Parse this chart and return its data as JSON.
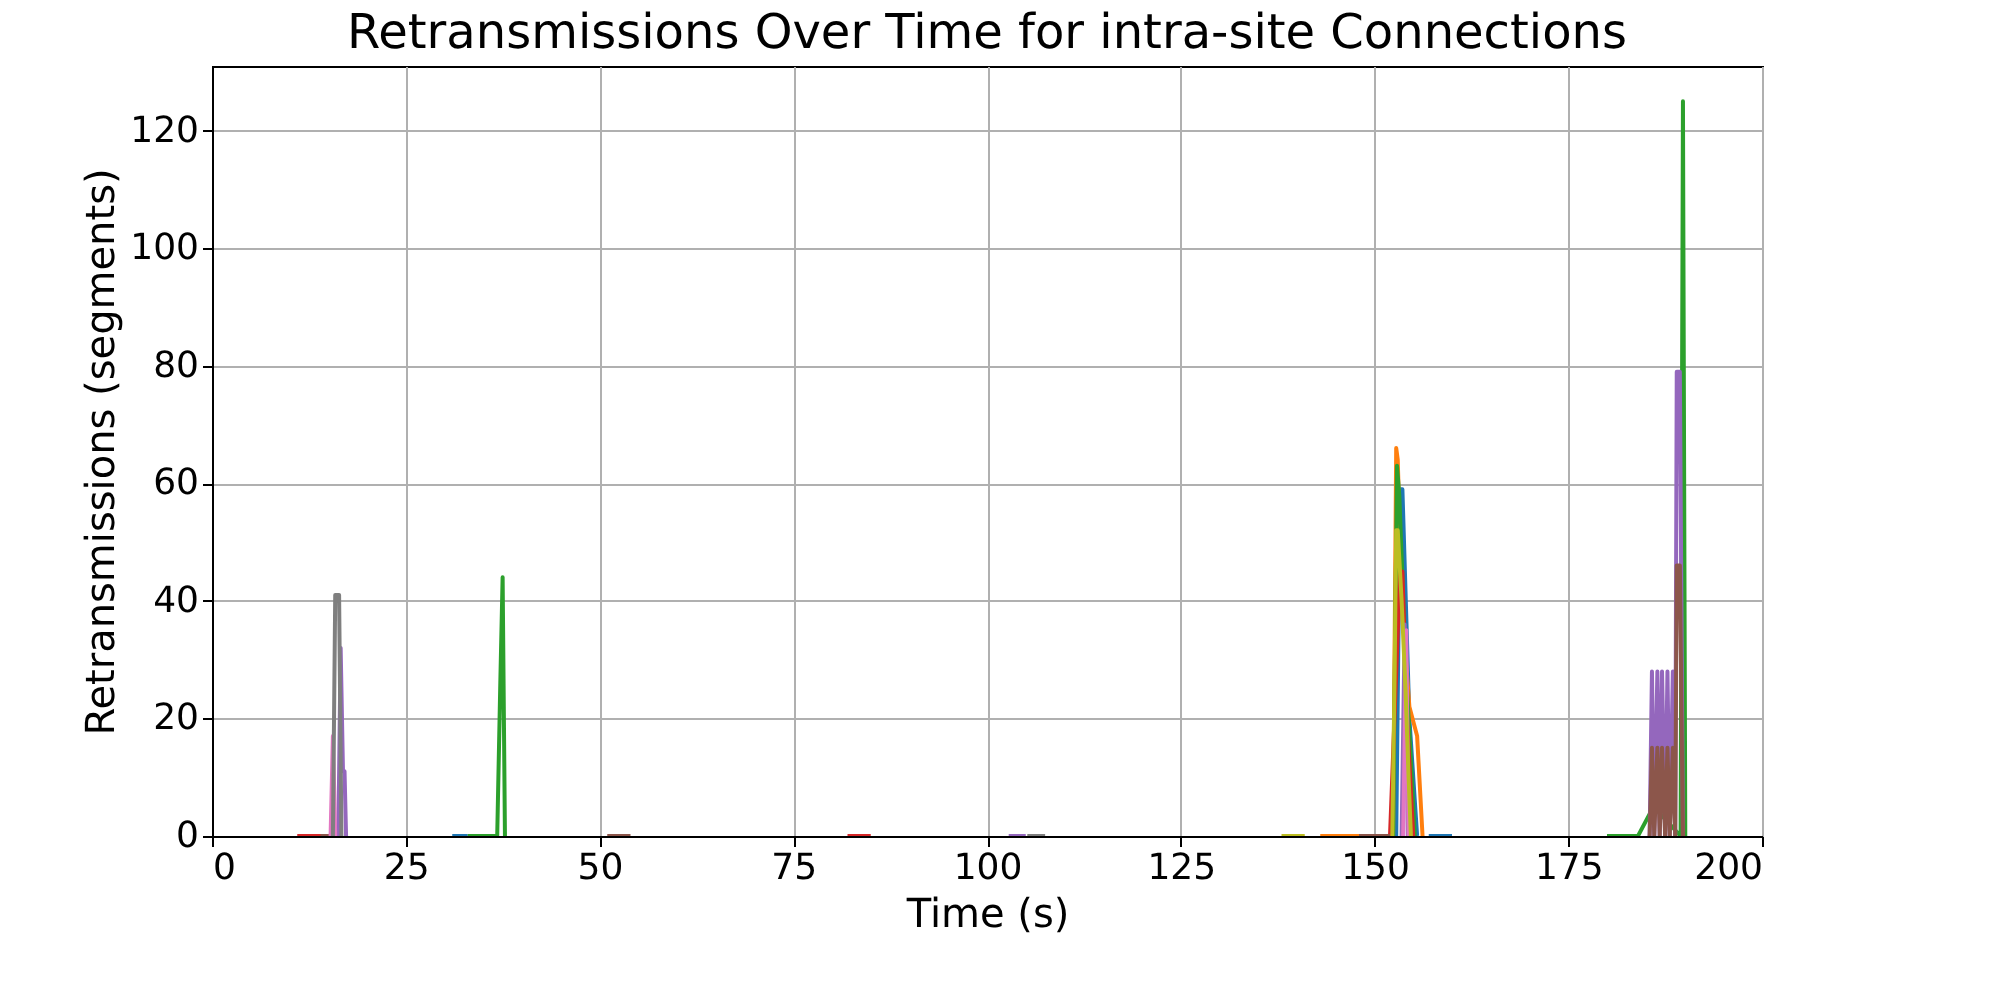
{
  "chart_data": {
    "type": "line",
    "title": "Retransmissions Over Time for intra-site Connections",
    "xlabel": "Time (s)",
    "ylabel": "Retransmissions (segments)",
    "xlim": [
      0,
      200
    ],
    "xticks": [
      0,
      25,
      50,
      75,
      100,
      125,
      150,
      175,
      200
    ],
    "ylim": [
      0,
      131
    ],
    "yticks": [
      0,
      20,
      40,
      60,
      80,
      100,
      120
    ],
    "grid": true,
    "legend": false,
    "marker": "none",
    "line_style": "solid",
    "series": [
      {
        "color": "#1f77b4",
        "x": [
          31,
          33,
          null,
          152.8,
          153.3,
          153.6,
          154.5,
          155.5,
          null,
          157,
          160
        ],
        "values": [
          0,
          0,
          null,
          0,
          59,
          59,
          20,
          0,
          null,
          0,
          0
        ]
      },
      {
        "color": "#ff7f0e",
        "x": [
          143,
          150,
          null,
          152.4,
          152.8,
          153.0,
          153.5,
          154.5,
          155.5,
          156.2
        ],
        "values": [
          0,
          0,
          null,
          0,
          66,
          64,
          40,
          22,
          17,
          0
        ]
      },
      {
        "color": "#2ca02c",
        "x": [
          33,
          36.8,
          37.2,
          37.5,
          37.8,
          null,
          152.4,
          152.9,
          153.2,
          154,
          155.2,
          null,
          180,
          184,
          186,
          189.5,
          189.8,
          190.1
        ],
        "values": [
          0,
          0,
          26,
          44,
          0,
          null,
          0,
          63,
          58,
          30,
          0,
          null,
          0,
          0,
          5,
          0,
          125,
          0
        ]
      },
      {
        "color": "#d62728",
        "x": [
          11,
          15,
          null,
          82,
          85,
          null,
          152,
          153.3,
          153.6,
          154.2,
          155
        ],
        "values": [
          0,
          0,
          null,
          0,
          0,
          null,
          0,
          45,
          45,
          20,
          0
        ]
      },
      {
        "color": "#9467bd",
        "x": [
          16.3,
          16.6,
          16.9,
          17.1,
          17.3,
          null,
          102.8,
          105,
          null,
          153.5,
          153.9,
          154.3,
          null,
          185.5,
          185.8,
          186.1,
          186.5,
          186.8,
          187.1,
          187.5,
          187.8,
          188.1,
          188.5,
          188.8,
          189.0,
          189.4,
          189.8
        ],
        "values": [
          0,
          32,
          11,
          11,
          0,
          null,
          0,
          0,
          null,
          0,
          36,
          0,
          null,
          0,
          28,
          0,
          28,
          0,
          28,
          0,
          28,
          0,
          28,
          0,
          79,
          79,
          0
        ]
      },
      {
        "color": "#8c564b",
        "x": [
          14,
          15.5,
          null,
          51,
          54,
          null,
          148,
          152,
          null,
          185.5,
          185.8,
          186.1,
          186.5,
          186.8,
          187.1,
          187.5,
          187.8,
          188.1,
          188.5,
          188.8,
          189.0,
          189.4,
          189.8
        ],
        "values": [
          0,
          0,
          null,
          0,
          0,
          null,
          0,
          0,
          null,
          0,
          15,
          0,
          15,
          0,
          15,
          0,
          15,
          0,
          15,
          0,
          46,
          46,
          0
        ]
      },
      {
        "color": "#e377c2",
        "x": [
          15.3,
          15.6,
          15.9,
          null,
          153.7,
          154.1,
          154.4
        ],
        "values": [
          0,
          17,
          0,
          null,
          0,
          35,
          0
        ]
      },
      {
        "color": "#7f7f7f",
        "x": [
          15.6,
          15.9,
          16.4,
          16.7,
          null,
          105.2,
          107.5
        ],
        "values": [
          0,
          41,
          41,
          0,
          null,
          0,
          0
        ]
      },
      {
        "color": "#bcbd22",
        "x": [
          138,
          141,
          null,
          152.3,
          152.6,
          152.8,
          153.0,
          153.5,
          154.0,
          154.4,
          154.7
        ],
        "values": [
          0,
          0,
          null,
          0,
          28,
          52,
          52,
          40,
          25,
          10,
          0
        ]
      }
    ]
  }
}
